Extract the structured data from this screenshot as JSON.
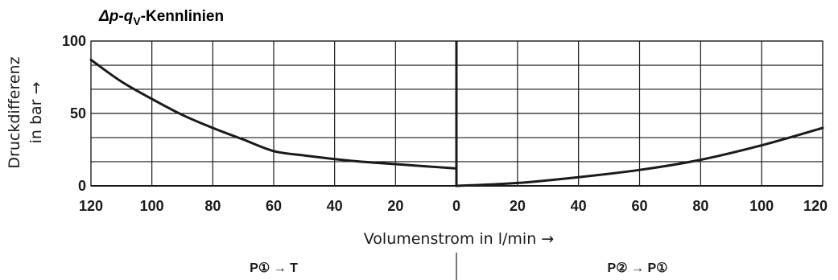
{
  "chart_data": {
    "type": "line",
    "title_parts": {
      "delta_p": "Δp",
      "dash": "-",
      "q": "q",
      "sub": "V",
      "rest": "-Kennlinien"
    },
    "ylabel_line1": "Druckdifferenz",
    "ylabel_line2": "in bar →",
    "xlabel": "Volumenstrom in l/min →",
    "ylim": [
      0,
      100
    ],
    "yticks": [
      "0",
      "50",
      "100"
    ],
    "left_xlim": [
      120,
      0
    ],
    "right_xlim": [
      0,
      120
    ],
    "left_xticks": [
      "120",
      "100",
      "80",
      "60",
      "40",
      "20",
      "0"
    ],
    "right_xticks": [
      "0",
      "20",
      "40",
      "60",
      "80",
      "100",
      "120"
    ],
    "grid": true,
    "series": [
      {
        "name": "P① → T",
        "x": [
          120,
          110,
          100,
          90,
          80,
          70,
          60,
          50,
          40,
          30,
          20,
          10,
          0
        ],
        "y": [
          87,
          72,
          60,
          49,
          40,
          32,
          24,
          21,
          18.5,
          16.5,
          15,
          13.5,
          12
        ]
      },
      {
        "name": "P② → P①",
        "x": [
          0,
          20,
          40,
          60,
          80,
          100,
          120
        ],
        "y": [
          0,
          2,
          6,
          11,
          18,
          28,
          40
        ]
      }
    ]
  }
}
